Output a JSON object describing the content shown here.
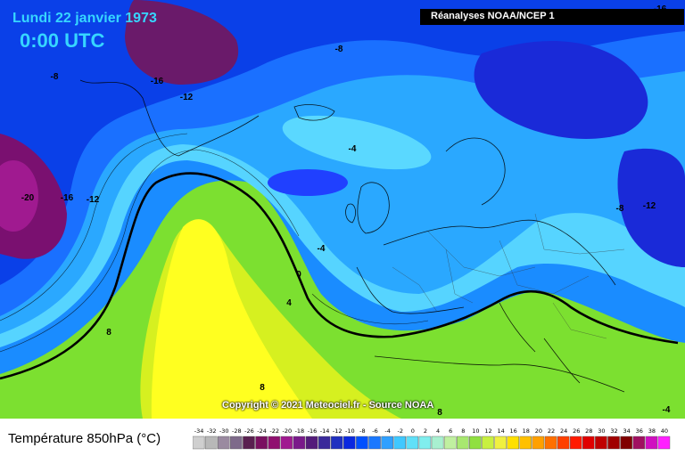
{
  "header": {
    "date": "Lundi 22 janvier 1973",
    "time": "0:00 UTC",
    "source": "Réanalyses NOAA/NCEP 1"
  },
  "footer": {
    "copyright": "Copyright © 2021 Meteociel.fr - Source NOAA",
    "legend_title": "Température 850hPa (°C)"
  },
  "legend": {
    "ticks": [
      "-34",
      "-32",
      "-30",
      "-28",
      "-26",
      "-24",
      "-22",
      "-20",
      "-18",
      "-16",
      "-14",
      "-12",
      "-10",
      "-8",
      "-6",
      "-4",
      "-2",
      "0",
      "2",
      "4",
      "6",
      "8",
      "10",
      "12",
      "14",
      "16",
      "18",
      "20",
      "22",
      "24",
      "26",
      "28",
      "30",
      "32",
      "34",
      "36",
      "38",
      "40"
    ],
    "colors": [
      "#cfcfcf",
      "#b8b8b8",
      "#9a8aa0",
      "#7e6a8a",
      "#5a2050",
      "#7a1060",
      "#901070",
      "#a01a90",
      "#7a1a8a",
      "#541c7a",
      "#3a2a9a",
      "#2030c0",
      "#0a28e0",
      "#0050ff",
      "#1a78ff",
      "#30a0ff",
      "#40c8ff",
      "#60e0f8",
      "#80eeee",
      "#a8f0d0",
      "#c0f0a0",
      "#a8e870",
      "#90e040",
      "#c8f040",
      "#f0f040",
      "#ffe000",
      "#ffc000",
      "#ffa000",
      "#ff7000",
      "#ff4000",
      "#ff1a00",
      "#e00000",
      "#c00000",
      "#a00000",
      "#800000",
      "#a01060",
      "#d010c0",
      "#ff20ff"
    ]
  },
  "map": {
    "contour_labels": [
      "-8",
      "-16",
      "-12",
      "-8",
      "-20",
      "-16",
      "-12",
      "-4",
      "-4",
      "0",
      "4",
      "8",
      "-8",
      "-12",
      "8",
      "-16",
      "-12",
      "8",
      "-4"
    ],
    "freezing_isotherm": "0"
  }
}
